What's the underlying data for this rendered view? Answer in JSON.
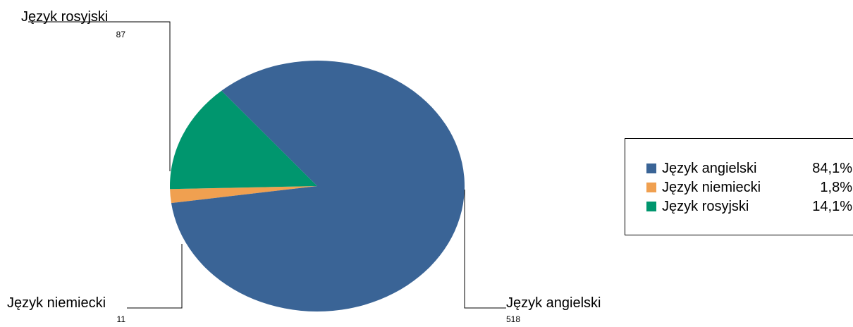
{
  "chart_data": {
    "type": "pie",
    "categories": [
      "Język angielski",
      "Język niemiecki",
      "Język rosyjski"
    ],
    "values": [
      518,
      11,
      87
    ],
    "percentages": [
      "84,1%",
      "1,8%",
      "14,1%"
    ],
    "colors": [
      "#3A6496",
      "#F0A050",
      "#00966E"
    ],
    "title": "",
    "legend_position": "right"
  }
}
